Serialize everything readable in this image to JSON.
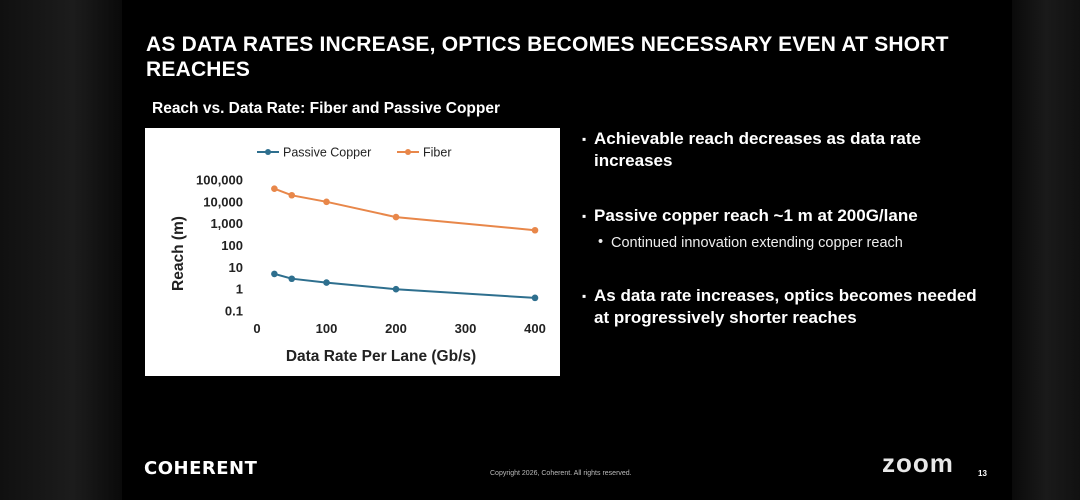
{
  "slide": {
    "title": "AS DATA RATES INCREASE, OPTICS BECOMES NECESSARY EVEN AT SHORT REACHES",
    "chart_heading": "Reach vs. Data Rate: Fiber and Passive Copper",
    "bullets": [
      {
        "mark": "▪",
        "text": "Achievable reach decreases as data rate increases"
      },
      {
        "mark": "▪",
        "text": "Passive copper reach ~1 m at 200G/lane",
        "sub": {
          "mark": "•",
          "text": "Continued innovation extending copper reach"
        }
      },
      {
        "mark": "▪",
        "text": "As data rate increases, optics becomes needed at progressively shorter reaches"
      }
    ],
    "footer": {
      "logo": "COHERENT",
      "copyright": "Copyright 2026, Coherent. All rights reserved.",
      "page_number": "13"
    }
  },
  "zoom_logo": "zoom",
  "chart_data": {
    "type": "line",
    "title": "",
    "xlabel": "Data Rate Per Lane (Gb/s)",
    "ylabel": "Reach (m)",
    "y_scale": "log",
    "xlim": [
      0,
      400
    ],
    "ylim": [
      0.1,
      100000
    ],
    "x_ticks": [
      "0",
      "100",
      "200",
      "300",
      "400"
    ],
    "y_ticks": [
      "0.1",
      "1",
      "10",
      "100",
      "1,000",
      "10,000",
      "100,000"
    ],
    "legend_position": "top-center",
    "grid": false,
    "series": [
      {
        "name": "Passive Copper",
        "color": "#2e6f8e",
        "x": [
          25,
          50,
          100,
          200,
          400
        ],
        "y": [
          5,
          3,
          2,
          1,
          0.4
        ]
      },
      {
        "name": "Fiber",
        "color": "#e8874a",
        "x": [
          25,
          50,
          100,
          200,
          400
        ],
        "y": [
          40000,
          20000,
          10000,
          2000,
          500
        ]
      }
    ]
  }
}
